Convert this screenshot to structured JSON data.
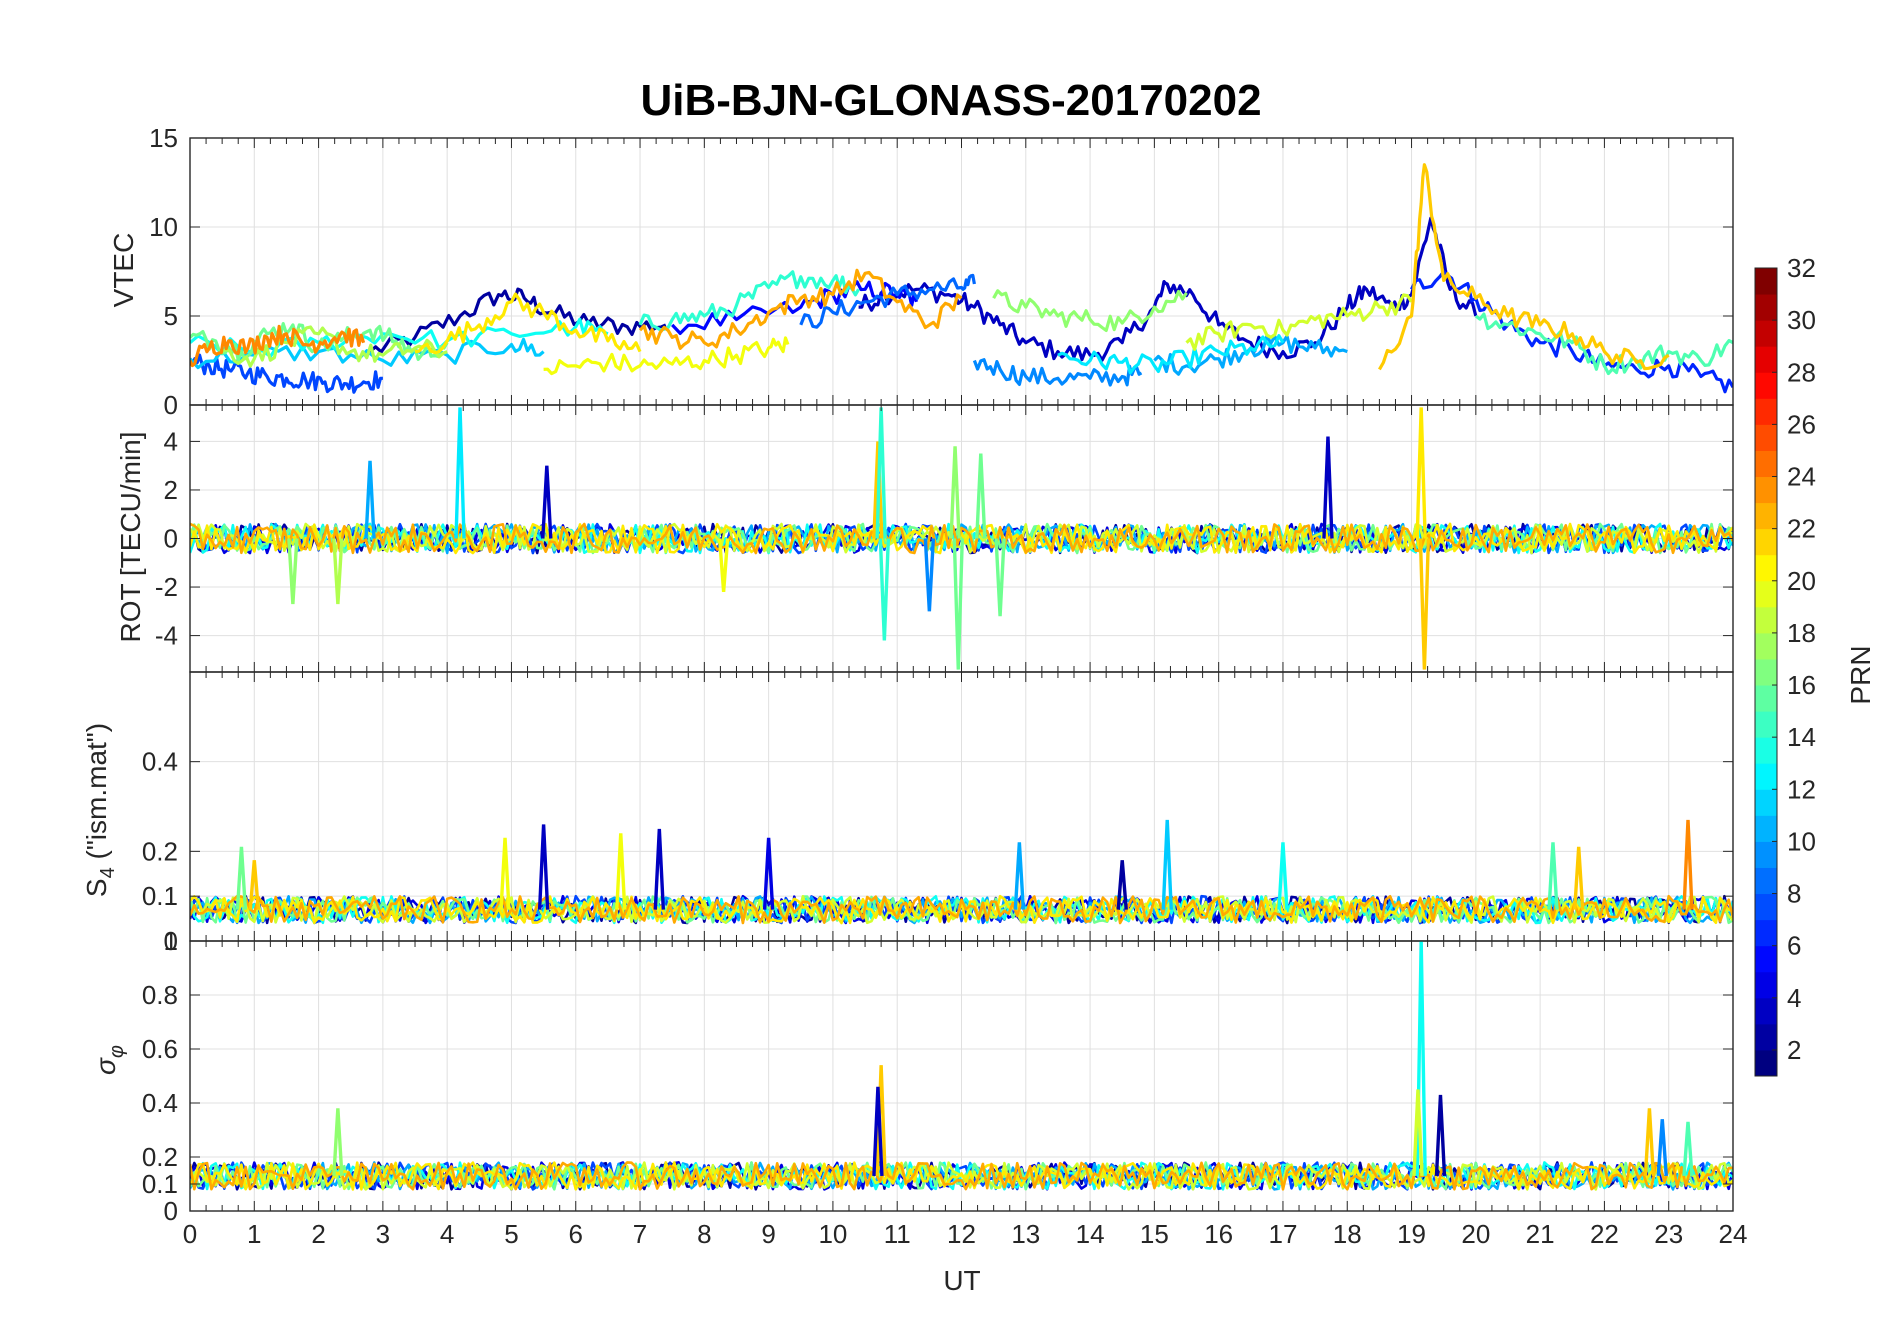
{
  "chart_data": {
    "type": "line",
    "title": "UiB-BJN-GLONASS-20170202",
    "xlabel": "UT",
    "xlim": [
      0,
      24
    ],
    "x_ticks": [
      "0",
      "1",
      "2",
      "3",
      "4",
      "5",
      "6",
      "7",
      "8",
      "9",
      "10",
      "11",
      "12",
      "13",
      "14",
      "15",
      "16",
      "17",
      "18",
      "19",
      "20",
      "21",
      "22",
      "23",
      "24"
    ],
    "grid": true,
    "panels": [
      {
        "id": "vtec",
        "ylabel": "VTEC",
        "ylim": [
          0,
          15
        ],
        "y_ticks": [
          "0",
          "5",
          "10",
          "15"
        ],
        "y_tick_values": [
          0,
          5,
          10,
          15
        ],
        "series": [
          {
            "prn": 2,
            "x": [
              2.8,
              3.5,
              4.2,
              4.8,
              5.2,
              5.6,
              6.2,
              6.8,
              7.4
            ],
            "y": [
              3,
              3.8,
              5,
              6.2,
              6,
              5.2,
              4.6,
              4.4,
              4.5
            ]
          },
          {
            "prn": 3,
            "x": [
              10.4,
              10.8,
              11.3,
              11.8,
              12.2,
              12.6,
              13.0,
              13.5,
              14.0,
              14.5,
              15.0,
              15.2,
              15.6,
              16.0,
              16.5,
              17.0,
              17.5,
              18.0,
              18.3,
              18.7,
              19.0,
              19.3,
              19.6,
              20.0
            ],
            "y": [
              5.5,
              6.2,
              6.5,
              6.2,
              5.5,
              4.5,
              3.5,
              3.0,
              2.8,
              3.5,
              5.5,
              6.8,
              6.2,
              4.5,
              3.5,
              3.0,
              3.5,
              5.5,
              6.5,
              5.5,
              6.2,
              10.5,
              6.5,
              5.0
            ]
          },
          {
            "prn": 5,
            "x": [
              7.5,
              8.5,
              9.5,
              10.0,
              10.5,
              11.0,
              11.3
            ],
            "y": [
              4.5,
              4.8,
              5.5,
              6.2,
              6.5,
              6.3,
              5.8
            ]
          },
          {
            "prn": 6,
            "x": [
              19.0,
              19.5,
              20.0,
              20.5,
              21.0,
              21.5,
              22.0,
              22.5,
              23.0,
              23.5,
              24.0
            ],
            "y": [
              6.5,
              7.5,
              6.0,
              4.5,
              3.5,
              3.0,
              2.2,
              2.0,
              2.2,
              1.6,
              1.0
            ]
          },
          {
            "prn": 7,
            "x": [
              0.0,
              0.3,
              0.6,
              0.9,
              1.2,
              1.5,
              1.8,
              2.1,
              2.4,
              2.7,
              3.0
            ],
            "y": [
              2.5,
              2.2,
              2.0,
              1.8,
              1.6,
              1.5,
              1.4,
              1.3,
              1.2,
              1.3,
              1.5
            ]
          },
          {
            "prn": 8,
            "x": [
              9.5,
              10.0,
              10.5,
              11.0,
              11.5,
              12.0,
              12.2
            ],
            "y": [
              4.5,
              5.2,
              5.8,
              6.2,
              6.5,
              6.6,
              6.8
            ]
          },
          {
            "prn": 9,
            "x": [
              12.2,
              12.6,
              13.0,
              13.5,
              14.0,
              14.5,
              14.8
            ],
            "y": [
              2.5,
              2.0,
              1.6,
              1.5,
              1.5,
              1.6,
              1.8
            ]
          },
          {
            "prn": 10,
            "x": [
              15.0,
              15.5,
              16.0,
              16.5,
              17.0,
              17.5,
              18.0
            ],
            "y": [
              2.5,
              2.2,
              2.6,
              3.2,
              3.5,
              3.2,
              3.0
            ]
          },
          {
            "prn": 11,
            "x": [
              0.0,
              1.0,
              2.0,
              3.0,
              4.0,
              5.0,
              5.5
            ],
            "y": [
              2.6,
              2.8,
              3.0,
              2.5,
              2.8,
              3.4,
              3.0
            ]
          },
          {
            "prn": 12,
            "x": [
              13.5,
              14.0,
              14.5,
              15.0,
              15.5,
              16.0,
              16.5,
              17.0
            ],
            "y": [
              2.8,
              2.5,
              2.4,
              2.2,
              2.6,
              3.0,
              3.2,
              3.5
            ]
          },
          {
            "prn": 13,
            "x": [
              0.0,
              1.0,
              2.0,
              3.0,
              4.0,
              5.0,
              6.0,
              6.5
            ],
            "y": [
              3.5,
              3.0,
              3.5,
              4.0,
              3.6,
              4.0,
              4.4,
              4.0
            ]
          },
          {
            "prn": 14,
            "x": [
              7.0,
              7.5,
              8.0,
              8.5,
              9.0,
              9.5,
              10.0,
              10.4
            ],
            "y": [
              4.5,
              4.8,
              5.0,
              5.6,
              6.6,
              7.2,
              7.0,
              6.5
            ]
          },
          {
            "prn": 15,
            "x": [
              20.0,
              20.5,
              21.0,
              21.5,
              22.0,
              22.5,
              23.0,
              23.5,
              24.0
            ],
            "y": [
              5.0,
              4.5,
              4.0,
              3.5,
              2.2,
              2.5,
              3.0,
              2.5,
              3.5
            ]
          },
          {
            "prn": 16,
            "x": [
              0.0,
              0.4,
              0.8,
              1.2,
              1.6,
              2.0,
              2.4,
              2.8,
              3.2,
              3.6,
              4.0
            ],
            "y": [
              3.8,
              3.6,
              3.0,
              4.0,
              4.5,
              3.2,
              3.8,
              4.2,
              3.6,
              2.8,
              3.5
            ]
          },
          {
            "prn": 17,
            "x": [
              12.5,
              13.0,
              13.5,
              14.0,
              14.5,
              15.0,
              15.5
            ],
            "y": [
              6.0,
              5.5,
              5.0,
              4.8,
              4.6,
              5.5,
              6.3
            ]
          },
          {
            "prn": 18,
            "x": [
              0.5,
              1.0,
              1.5,
              2.0,
              2.5,
              3.0,
              3.5,
              4.0
            ],
            "y": [
              3.0,
              2.6,
              3.5,
              4.0,
              3.0,
              2.8,
              3.2,
              3.0
            ]
          },
          {
            "prn": 19,
            "x": [
              15.5,
              16.0,
              16.5,
              17.0,
              17.5,
              18.0,
              18.5,
              19.0
            ],
            "y": [
              3.5,
              4.0,
              4.5,
              4.2,
              4.8,
              5.0,
              5.5,
              5.8
            ]
          },
          {
            "prn": 20,
            "x": [
              5.5,
              6.0,
              6.5,
              7.0,
              7.5,
              8.0,
              8.5,
              9.0,
              9.3
            ],
            "y": [
              2.0,
              2.2,
              2.4,
              2.2,
              2.3,
              2.5,
              2.8,
              3.2,
              3.4
            ]
          },
          {
            "prn": 21,
            "x": [
              3.5,
              4.0,
              4.5,
              5.0,
              5.5,
              6.0,
              6.5,
              7.0
            ],
            "y": [
              3.0,
              3.6,
              4.5,
              5.8,
              5.2,
              4.2,
              3.6,
              3.0
            ]
          },
          {
            "prn": 22,
            "x": [
              18.5,
              19.0,
              19.2,
              19.5,
              20.0,
              20.5,
              21.0,
              21.5,
              22.0,
              22.5,
              23.0
            ],
            "y": [
              2.0,
              5.0,
              13.5,
              7.0,
              6.0,
              5.0,
              4.5,
              4.0,
              3.0,
              2.4,
              2.8
            ]
          },
          {
            "prn": 23,
            "x": [
              7.0,
              7.5,
              8.0,
              8.5,
              9.0,
              9.5,
              10.0,
              10.5,
              11.0,
              11.5,
              12.0
            ],
            "y": [
              4.2,
              3.8,
              3.5,
              4.2,
              5.2,
              6.0,
              6.2,
              7.4,
              5.8,
              4.5,
              6.0
            ]
          },
          {
            "prn": 24,
            "x": [
              0.0,
              0.3,
              0.6,
              0.9,
              1.2,
              1.5,
              1.8,
              2.1,
              2.4,
              2.7
            ],
            "y": [
              2.5,
              3.2,
              3.6,
              3.2,
              3.8,
              4.0,
              3.4,
              3.6,
              4.0,
              3.5
            ]
          }
        ]
      },
      {
        "id": "rot",
        "ylabel": "ROT [TECU/min]",
        "ylim": [
          -5.5,
          5.5
        ],
        "y_ticks": [
          "-4",
          "-2",
          "0",
          "2",
          "4"
        ],
        "y_tick_values": [
          -4,
          -2,
          0,
          2,
          4
        ],
        "spikes": [
          {
            "prn": 12,
            "x": 4.2,
            "y": 5.4
          },
          {
            "prn": 10,
            "x": 2.8,
            "y": 3.2
          },
          {
            "prn": 3,
            "x": 5.55,
            "y": 3.0
          },
          {
            "prn": 22,
            "x": 10.7,
            "y": 4.0
          },
          {
            "prn": 14,
            "x": 10.75,
            "y": 5.4
          },
          {
            "prn": 14,
            "x": 10.8,
            "y": -4.2
          },
          {
            "prn": 17,
            "x": 11.9,
            "y": 3.8
          },
          {
            "prn": 16,
            "x": 11.95,
            "y": -5.4
          },
          {
            "prn": 16,
            "x": 12.3,
            "y": 3.5
          },
          {
            "prn": 3,
            "x": 17.7,
            "y": 4.2
          },
          {
            "prn": 21,
            "x": 19.15,
            "y": 5.4
          },
          {
            "prn": 22,
            "x": 19.2,
            "y": -5.4
          },
          {
            "prn": 17,
            "x": 1.6,
            "y": -2.7
          },
          {
            "prn": 18,
            "x": 2.3,
            "y": -2.7
          },
          {
            "prn": 20,
            "x": 8.3,
            "y": -2.2
          },
          {
            "prn": 9,
            "x": 11.5,
            "y": -3.0
          },
          {
            "prn": 16,
            "x": 12.6,
            "y": -3.2
          }
        ]
      },
      {
        "id": "s4",
        "ylabel": "S4 (\"ism.mat\")",
        "ylim": [
          0,
          0.6
        ],
        "y_ticks": [
          "0",
          "0.1",
          "0.2",
          "0.4"
        ],
        "y_tick_values": [
          0,
          0.1,
          0.2,
          0.4
        ],
        "spikes": [
          {
            "prn": 16,
            "x": 0.8,
            "y": 0.21
          },
          {
            "prn": 22,
            "x": 1.0,
            "y": 0.18
          },
          {
            "prn": 3,
            "x": 5.5,
            "y": 0.26
          },
          {
            "prn": 20,
            "x": 4.9,
            "y": 0.23
          },
          {
            "prn": 20,
            "x": 6.7,
            "y": 0.24
          },
          {
            "prn": 3,
            "x": 7.3,
            "y": 0.25
          },
          {
            "prn": 4,
            "x": 9.0,
            "y": 0.23
          },
          {
            "prn": 10,
            "x": 12.9,
            "y": 0.22
          },
          {
            "prn": 11,
            "x": 15.2,
            "y": 0.27
          },
          {
            "prn": 13,
            "x": 17.0,
            "y": 0.22
          },
          {
            "prn": 15,
            "x": 21.2,
            "y": 0.22
          },
          {
            "prn": 22,
            "x": 21.6,
            "y": 0.21
          },
          {
            "prn": 24,
            "x": 23.3,
            "y": 0.27
          },
          {
            "prn": 2,
            "x": 14.5,
            "y": 0.18
          }
        ]
      },
      {
        "id": "sigma_phi",
        "ylabel": "σφ",
        "ylim": [
          0,
          1
        ],
        "y_ticks": [
          "0",
          "0.1",
          "0.2",
          "0.4",
          "0.6",
          "0.8",
          "1"
        ],
        "y_tick_values": [
          0,
          0.1,
          0.2,
          0.4,
          0.6,
          0.8,
          1
        ],
        "spikes": [
          {
            "prn": 13,
            "x": 19.15,
            "y": 1.0
          },
          {
            "prn": 22,
            "x": 10.75,
            "y": 0.54
          },
          {
            "prn": 3,
            "x": 10.7,
            "y": 0.46
          },
          {
            "prn": 2,
            "x": 19.45,
            "y": 0.43
          },
          {
            "prn": 17,
            "x": 2.3,
            "y": 0.38
          },
          {
            "prn": 22,
            "x": 22.7,
            "y": 0.38
          },
          {
            "prn": 9,
            "x": 22.9,
            "y": 0.34
          },
          {
            "prn": 15,
            "x": 23.3,
            "y": 0.33
          },
          {
            "prn": 19,
            "x": 19.1,
            "y": 0.45
          }
        ]
      }
    ],
    "colorbar": {
      "label": "PRN",
      "ticks": [
        "2",
        "4",
        "6",
        "8",
        "10",
        "12",
        "14",
        "16",
        "18",
        "20",
        "22",
        "24",
        "26",
        "28",
        "30",
        "32"
      ],
      "range": [
        1,
        32
      ],
      "colormap": "jet"
    }
  }
}
